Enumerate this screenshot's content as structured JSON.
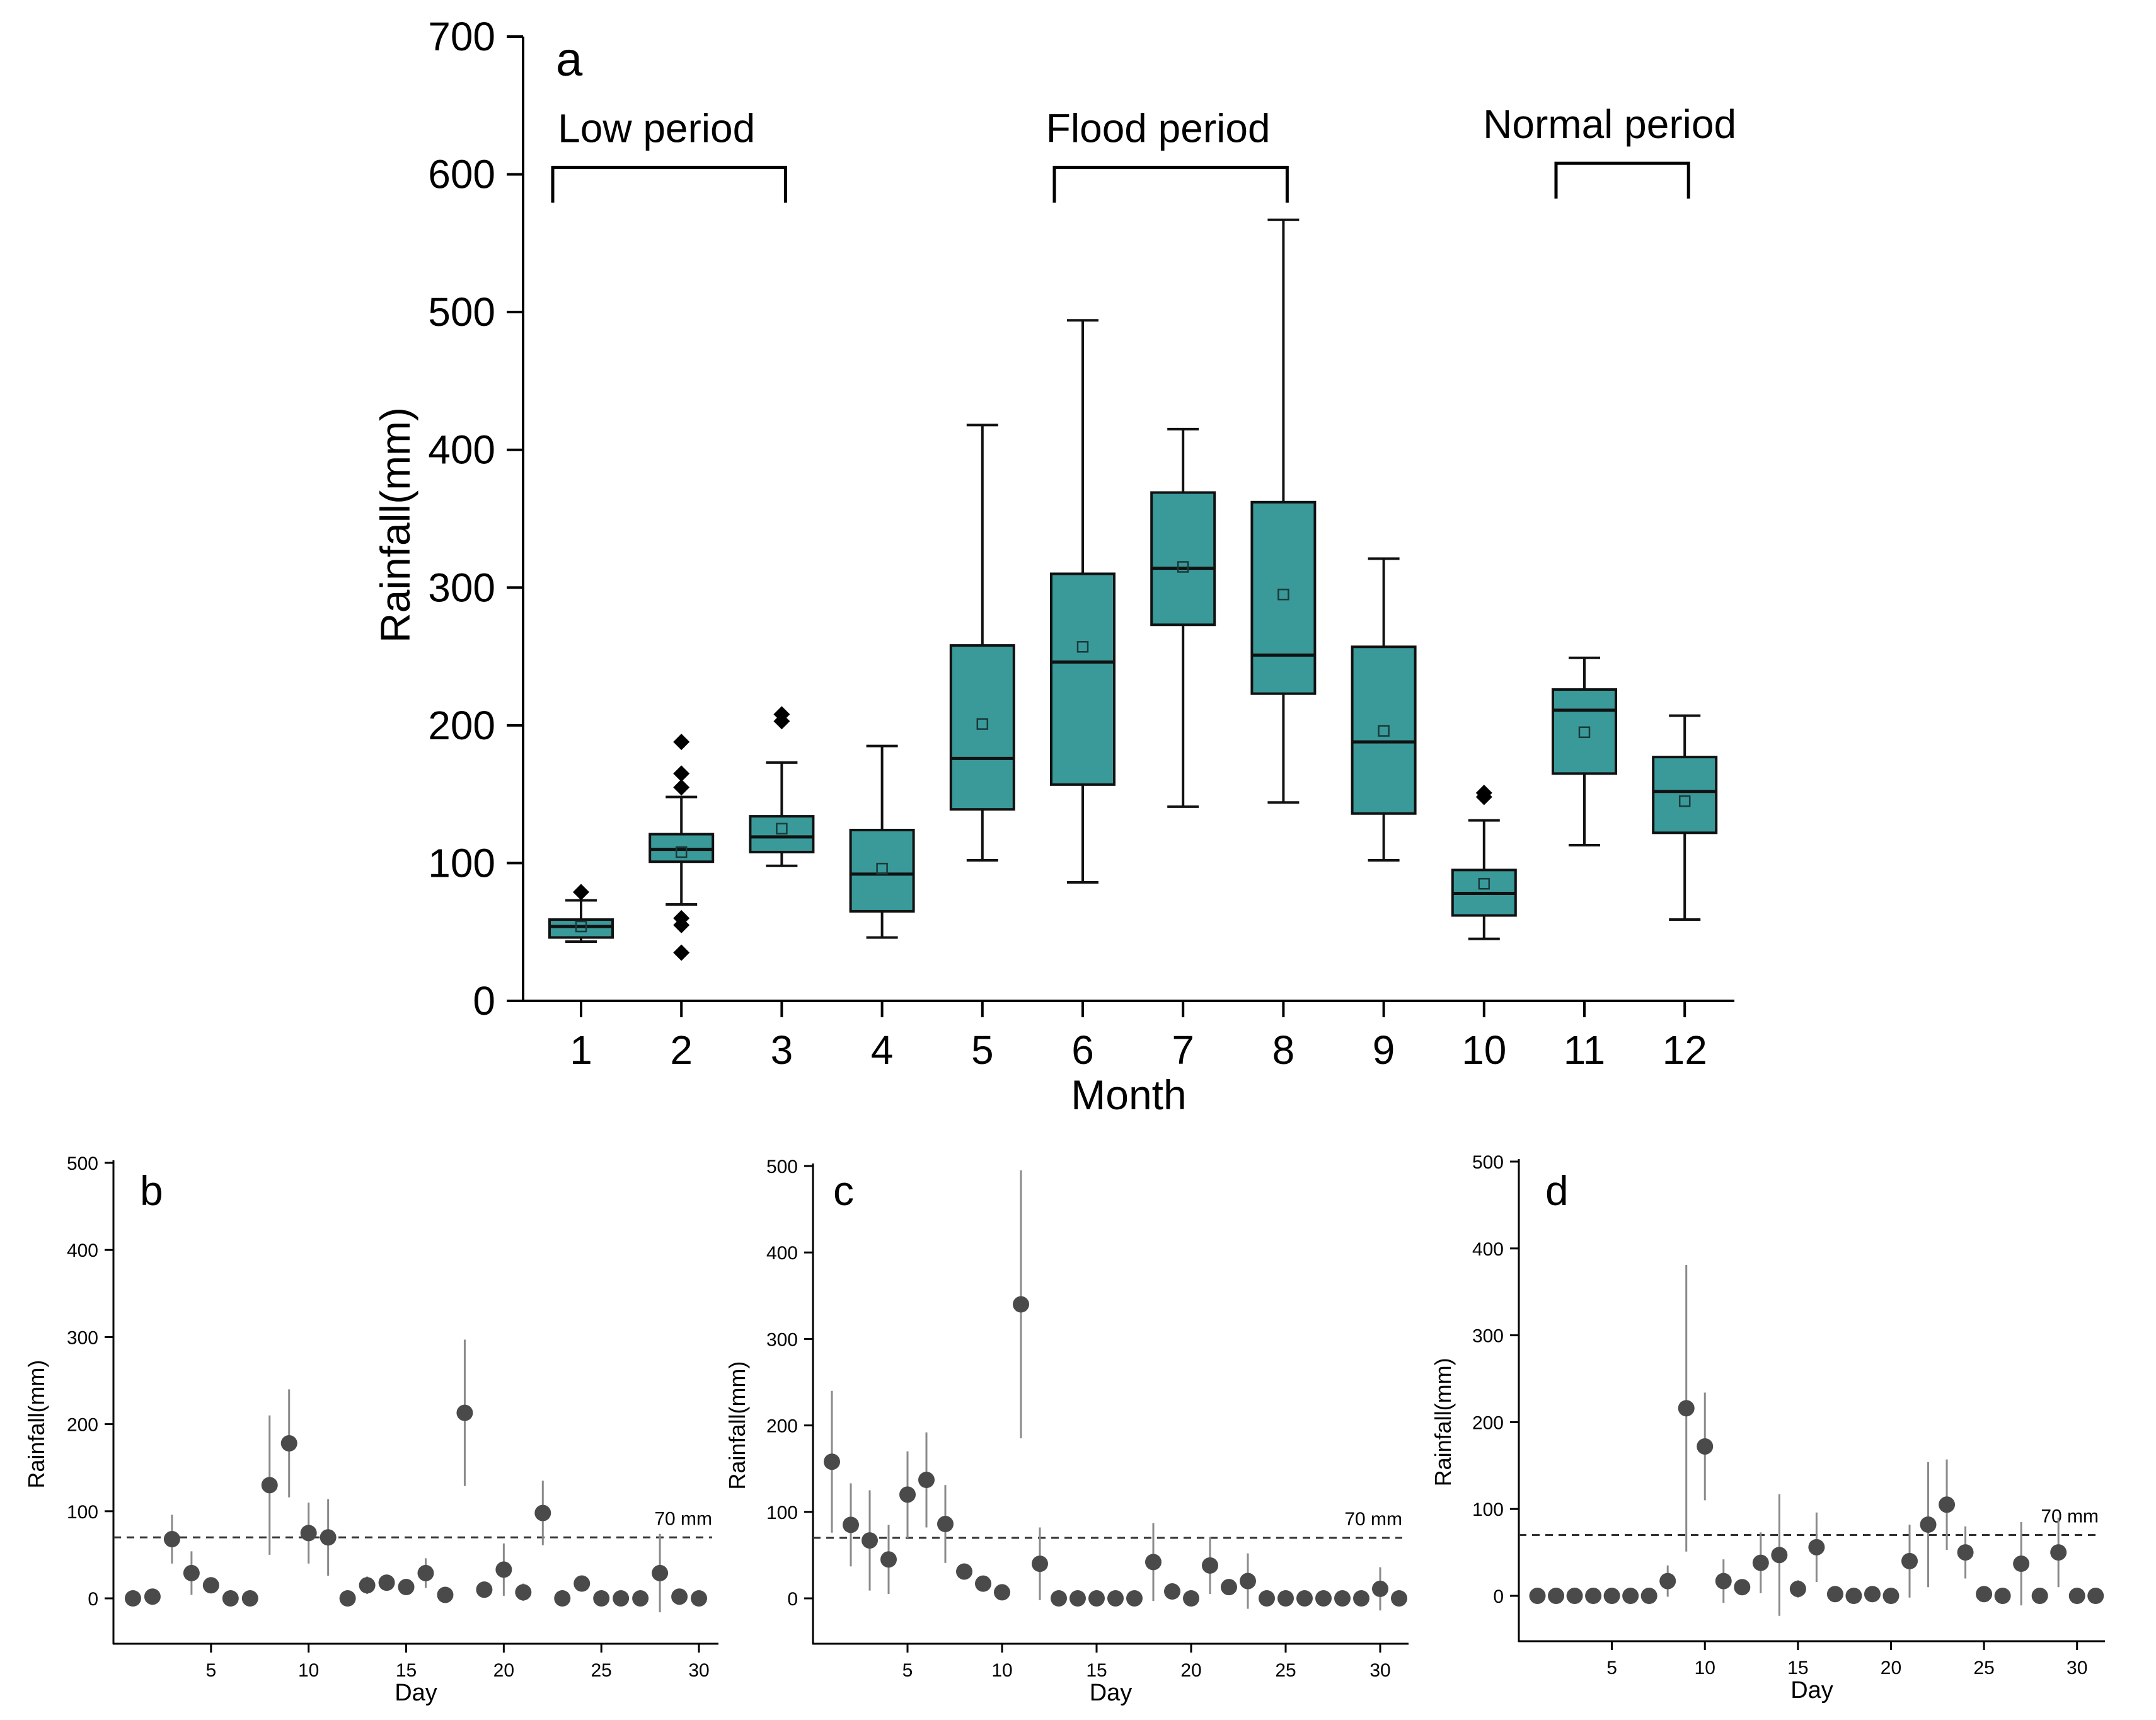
{
  "colors": {
    "box_fill": "#3a9a9a",
    "box_stroke": "#111111",
    "point": "#4a4a4a",
    "errorbar": "#8a8a8a",
    "axis": "#000000"
  },
  "chart_data": [
    {
      "type": "box",
      "panel_label": "a",
      "xlabel": "Month",
      "ylabel": "Rainfall(mm)",
      "ylim": [
        0,
        700
      ],
      "yticks": [
        0,
        100,
        200,
        300,
        400,
        500,
        600,
        700
      ],
      "categories": [
        "1",
        "2",
        "3",
        "4",
        "5",
        "6",
        "7",
        "8",
        "9",
        "10",
        "11",
        "12"
      ],
      "boxes": [
        {
          "month": "1",
          "whisker_low": 43,
          "q1": 46,
          "median": 54,
          "q3": 59,
          "whisker_high": 73,
          "mean": 54,
          "outliers": [
            79
          ]
        },
        {
          "month": "2",
          "whisker_low": 70,
          "q1": 101,
          "median": 110,
          "q3": 121,
          "whisker_high": 148,
          "mean": 108,
          "outliers": [
            35,
            55,
            60,
            165,
            155,
            188
          ]
        },
        {
          "month": "3",
          "whisker_low": 98,
          "q1": 108,
          "median": 119,
          "q3": 134,
          "whisker_high": 173,
          "mean": 125,
          "outliers": [
            203,
            208
          ]
        },
        {
          "month": "4",
          "whisker_low": 46,
          "q1": 65,
          "median": 92,
          "q3": 124,
          "whisker_high": 185,
          "mean": 96,
          "outliers": []
        },
        {
          "month": "5",
          "whisker_low": 102,
          "q1": 139,
          "median": 176,
          "q3": 258,
          "whisker_high": 418,
          "mean": 201,
          "outliers": []
        },
        {
          "month": "6",
          "whisker_low": 86,
          "q1": 157,
          "median": 246,
          "q3": 310,
          "whisker_high": 494,
          "mean": 257,
          "outliers": []
        },
        {
          "month": "7",
          "whisker_low": 141,
          "q1": 273,
          "median": 314,
          "q3": 369,
          "whisker_high": 415,
          "mean": 315,
          "outliers": []
        },
        {
          "month": "8",
          "whisker_low": 144,
          "q1": 223,
          "median": 251,
          "q3": 362,
          "whisker_high": 567,
          "mean": 295,
          "outliers": []
        },
        {
          "month": "9",
          "whisker_low": 102,
          "q1": 136,
          "median": 188,
          "q3": 257,
          "whisker_high": 321,
          "mean": 196,
          "outliers": []
        },
        {
          "month": "10",
          "whisker_low": 45,
          "q1": 62,
          "median": 78,
          "q3": 95,
          "whisker_high": 131,
          "mean": 85,
          "outliers": [
            148,
            151
          ]
        },
        {
          "month": "11",
          "whisker_low": 113,
          "q1": 165,
          "median": 211,
          "q3": 226,
          "whisker_high": 249,
          "mean": 195,
          "outliers": []
        },
        {
          "month": "12",
          "whisker_low": 59,
          "q1": 122,
          "median": 152,
          "q3": 177,
          "whisker_high": 207,
          "mean": 145,
          "outliers": []
        }
      ],
      "annotations": [
        {
          "text": "Low period",
          "from": "1",
          "to": "3",
          "level": 605
        },
        {
          "text": "Flood period",
          "from": "6",
          "to": "8",
          "level": 605
        },
        {
          "text": "Normal period",
          "from": "11",
          "to": "12",
          "level": 608
        }
      ]
    },
    {
      "type": "scatter",
      "panel_label": "b",
      "xlabel": "Day",
      "ylabel": "Rainfall(mm)",
      "ylim": [
        -50,
        500
      ],
      "yticks": [
        0,
        100,
        200,
        300,
        400,
        500
      ],
      "xlim": [
        0,
        31
      ],
      "xticks": [
        5,
        10,
        15,
        20,
        25,
        30
      ],
      "threshold": {
        "value": 70,
        "label": "70 mm"
      },
      "points": [
        {
          "day": 1,
          "value": 0,
          "err": 0
        },
        {
          "day": 2,
          "value": 2,
          "err": 0
        },
        {
          "day": 3,
          "value": 68,
          "err": 28
        },
        {
          "day": 4,
          "value": 29,
          "err": 25
        },
        {
          "day": 5,
          "value": 15,
          "err": 0
        },
        {
          "day": 6,
          "value": 0,
          "err": 0
        },
        {
          "day": 7,
          "value": 0,
          "err": 0
        },
        {
          "day": 8,
          "value": 130,
          "err": 80
        },
        {
          "day": 9,
          "value": 178,
          "err": 62
        },
        {
          "day": 10,
          "value": 75,
          "err": 35
        },
        {
          "day": 11,
          "value": 70,
          "err": 44
        },
        {
          "day": 12,
          "value": 0,
          "err": 0
        },
        {
          "day": 13,
          "value": 15,
          "err": 10
        },
        {
          "day": 14,
          "value": 18,
          "err": 0
        },
        {
          "day": 15,
          "value": 13,
          "err": 0
        },
        {
          "day": 16,
          "value": 29,
          "err": 17
        },
        {
          "day": 17,
          "value": 4,
          "err": 0
        },
        {
          "day": 18,
          "value": 213,
          "err": 84
        },
        {
          "day": 19,
          "value": 10,
          "err": 0
        },
        {
          "day": 20,
          "value": 33,
          "err": 30
        },
        {
          "day": 21,
          "value": 7,
          "err": 10
        },
        {
          "day": 22,
          "value": 98,
          "err": 37
        },
        {
          "day": 23,
          "value": 0,
          "err": 0
        },
        {
          "day": 24,
          "value": 17,
          "err": 0
        },
        {
          "day": 25,
          "value": 0,
          "err": 0
        },
        {
          "day": 26,
          "value": 0,
          "err": 0
        },
        {
          "day": 27,
          "value": 0,
          "err": 0
        },
        {
          "day": 28,
          "value": 29,
          "err": 45
        },
        {
          "day": 29,
          "value": 2,
          "err": 0
        },
        {
          "day": 30,
          "value": 0,
          "err": 0
        }
      ]
    },
    {
      "type": "scatter",
      "panel_label": "c",
      "xlabel": "Day",
      "ylabel": "Rainfall(mm)",
      "ylim": [
        -50,
        500
      ],
      "yticks": [
        0,
        100,
        200,
        300,
        400,
        500
      ],
      "xlim": [
        0,
        31.5
      ],
      "xticks": [
        5,
        10,
        15,
        20,
        25,
        30
      ],
      "threshold": {
        "value": 70,
        "label": "70 mm"
      },
      "points": [
        {
          "day": 1,
          "value": 158,
          "err": 82
        },
        {
          "day": 2,
          "value": 85,
          "err": 48
        },
        {
          "day": 3,
          "value": 67,
          "err": 58
        },
        {
          "day": 4,
          "value": 45,
          "err": 40
        },
        {
          "day": 5,
          "value": 120,
          "err": 50
        },
        {
          "day": 6,
          "value": 137,
          "err": 55
        },
        {
          "day": 7,
          "value": 86,
          "err": 45
        },
        {
          "day": 8,
          "value": 31,
          "err": 0
        },
        {
          "day": 9,
          "value": 17,
          "err": 0
        },
        {
          "day": 10,
          "value": 7,
          "err": 0
        },
        {
          "day": 11,
          "value": 340,
          "err": 155
        },
        {
          "day": 12,
          "value": 40,
          "err": 42
        },
        {
          "day": 13,
          "value": 0,
          "err": 0
        },
        {
          "day": 14,
          "value": 0,
          "err": 0
        },
        {
          "day": 15,
          "value": 0,
          "err": 0
        },
        {
          "day": 16,
          "value": 0,
          "err": 0
        },
        {
          "day": 17,
          "value": 0,
          "err": 0
        },
        {
          "day": 18,
          "value": 42,
          "err": 45
        },
        {
          "day": 19,
          "value": 8,
          "err": 0
        },
        {
          "day": 20,
          "value": 0,
          "err": 0
        },
        {
          "day": 21,
          "value": 38,
          "err": 33
        },
        {
          "day": 22,
          "value": 13,
          "err": 0
        },
        {
          "day": 23,
          "value": 20,
          "err": 32
        },
        {
          "day": 24,
          "value": 0,
          "err": 0
        },
        {
          "day": 25,
          "value": 0,
          "err": 0
        },
        {
          "day": 26,
          "value": 0,
          "err": 0
        },
        {
          "day": 27,
          "value": 0,
          "err": 0
        },
        {
          "day": 28,
          "value": 0,
          "err": 0
        },
        {
          "day": 29,
          "value": 0,
          "err": 0
        },
        {
          "day": 30,
          "value": 11,
          "err": 25
        },
        {
          "day": 31,
          "value": 0,
          "err": 0
        }
      ]
    },
    {
      "type": "scatter",
      "panel_label": "d",
      "xlabel": "Day",
      "ylabel": "Rainfall(mm)",
      "ylim": [
        -50,
        500
      ],
      "yticks": [
        0,
        100,
        200,
        300,
        400,
        500
      ],
      "xlim": [
        0,
        31.5
      ],
      "xticks": [
        5,
        10,
        15,
        20,
        25,
        30
      ],
      "threshold": {
        "value": 70,
        "label": "70 mm"
      },
      "points": [
        {
          "day": 1,
          "value": 0,
          "err": 0
        },
        {
          "day": 2,
          "value": 0,
          "err": 0
        },
        {
          "day": 3,
          "value": 0,
          "err": 0
        },
        {
          "day": 4,
          "value": 0,
          "err": 0
        },
        {
          "day": 5,
          "value": 0,
          "err": 0
        },
        {
          "day": 6,
          "value": 0,
          "err": 0
        },
        {
          "day": 7,
          "value": 0,
          "err": 0
        },
        {
          "day": 8,
          "value": 17,
          "err": 18
        },
        {
          "day": 9,
          "value": 216,
          "err": 165
        },
        {
          "day": 10,
          "value": 172,
          "err": 62
        },
        {
          "day": 11,
          "value": 17,
          "err": 25
        },
        {
          "day": 12,
          "value": 10,
          "err": 0
        },
        {
          "day": 13,
          "value": 38,
          "err": 35
        },
        {
          "day": 14,
          "value": 47,
          "err": 70
        },
        {
          "day": 15,
          "value": 8,
          "err": 10
        },
        {
          "day": 16,
          "value": 56,
          "err": 40
        },
        {
          "day": 17,
          "value": 2,
          "err": 0
        },
        {
          "day": 18,
          "value": 0,
          "err": 0
        },
        {
          "day": 19,
          "value": 2,
          "err": 0
        },
        {
          "day": 20,
          "value": 0,
          "err": 0
        },
        {
          "day": 21,
          "value": 40,
          "err": 42
        },
        {
          "day": 22,
          "value": 82,
          "err": 72
        },
        {
          "day": 23,
          "value": 105,
          "err": 52
        },
        {
          "day": 24,
          "value": 50,
          "err": 30
        },
        {
          "day": 25,
          "value": 2,
          "err": 0
        },
        {
          "day": 26,
          "value": 0,
          "err": 0
        },
        {
          "day": 27,
          "value": 37,
          "err": 48
        },
        {
          "day": 28,
          "value": 0,
          "err": 0
        },
        {
          "day": 29,
          "value": 50,
          "err": 40
        },
        {
          "day": 30,
          "value": 0,
          "err": 0
        },
        {
          "day": 31,
          "value": 0,
          "err": 0
        }
      ]
    }
  ]
}
